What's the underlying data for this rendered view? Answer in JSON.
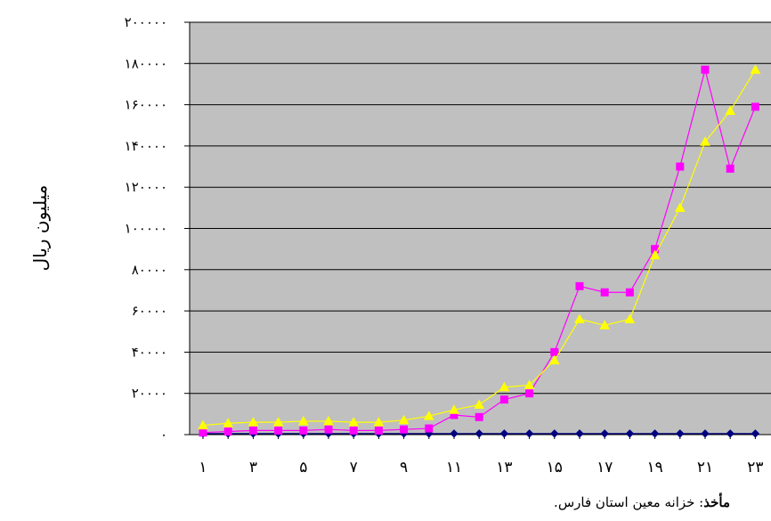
{
  "chart_data": {
    "type": "line",
    "title": "",
    "xlabel": "",
    "ylabel": "میلیون ریال",
    "ylim": [
      0,
      200000
    ],
    "y_ticks": [
      0,
      20000,
      40000,
      60000,
      80000,
      100000,
      120000,
      140000,
      160000,
      180000,
      200000
    ],
    "y_tick_labels": [
      "۰",
      "۲۰۰۰۰",
      "۴۰۰۰۰",
      "۶۰۰۰۰",
      "۸۰۰۰۰",
      "۱۰۰۰۰۰",
      "۱۲۰۰۰۰",
      "۱۴۰۰۰۰",
      "۱۶۰۰۰۰",
      "۱۸۰۰۰۰",
      "۲۰۰۰۰۰"
    ],
    "x": [
      1,
      2,
      3,
      4,
      5,
      6,
      7,
      8,
      9,
      10,
      11,
      12,
      13,
      14,
      15,
      16,
      17,
      18,
      19,
      20,
      21,
      22,
      23
    ],
    "x_tick_labels": [
      "۱",
      "۳",
      "۵",
      "۷",
      "۹",
      "۱۱",
      "۱۳",
      "۱۵",
      "۱۷",
      "۱۹",
      "۲۱",
      "۲۳"
    ],
    "x_tick_positions": [
      1,
      3,
      5,
      7,
      9,
      11,
      13,
      15,
      17,
      19,
      21,
      23
    ],
    "grid": true,
    "legend": "none",
    "plot_background": "#c0c0c0",
    "series": [
      {
        "color": "#000080",
        "marker": "diamond",
        "values": [
          500,
          500,
          500,
          500,
          500,
          500,
          500,
          500,
          500,
          500,
          500,
          500,
          500,
          500,
          500,
          500,
          500,
          500,
          500,
          500,
          500,
          500,
          500
        ]
      },
      {
        "color": "#ff00ff",
        "marker": "square",
        "values": [
          1000,
          1500,
          2000,
          2000,
          2000,
          2500,
          2000,
          2000,
          2500,
          3000,
          9500,
          8500,
          17000,
          20000,
          40000,
          72000,
          69000,
          69000,
          90000,
          130000,
          177000,
          129000,
          159000
        ]
      },
      {
        "color": "#ffff00",
        "marker": "triangle",
        "values": [
          4500,
          5500,
          6000,
          6000,
          6500,
          6500,
          6000,
          6000,
          7000,
          9000,
          12000,
          14500,
          23000,
          24000,
          36000,
          56000,
          53000,
          56000,
          87000,
          110000,
          142000,
          157000,
          177000
        ]
      }
    ]
  },
  "source_note": {
    "label": "مأخذ",
    "text": ": خزانه معین استان فارس."
  }
}
